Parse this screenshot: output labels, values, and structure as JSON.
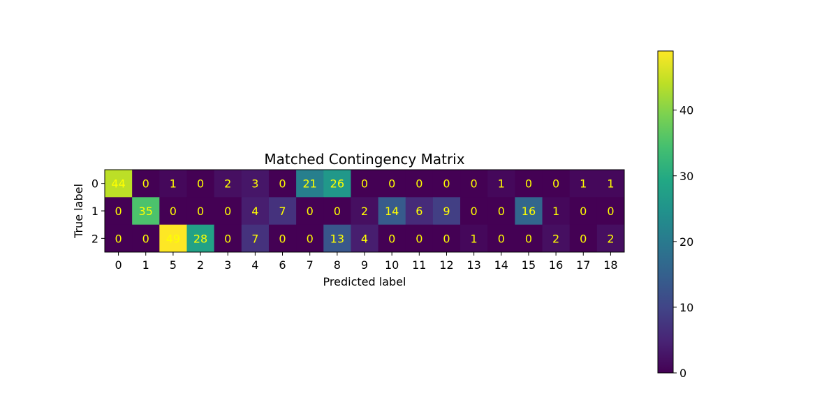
{
  "chart_data": {
    "type": "heatmap",
    "title": "Matched Contingency Matrix",
    "xlabel": "Predicted label",
    "ylabel": "True label",
    "x_categories": [
      "0",
      "1",
      "5",
      "2",
      "3",
      "4",
      "6",
      "7",
      "8",
      "9",
      "10",
      "11",
      "12",
      "13",
      "14",
      "15",
      "16",
      "17",
      "18"
    ],
    "y_categories": [
      "0",
      "1",
      "2"
    ],
    "values": [
      [
        44,
        0,
        1,
        0,
        2,
        3,
        0,
        21,
        26,
        0,
        0,
        0,
        0,
        0,
        1,
        0,
        0,
        1,
        1
      ],
      [
        0,
        35,
        0,
        0,
        0,
        4,
        7,
        0,
        0,
        2,
        14,
        6,
        9,
        0,
        0,
        16,
        1,
        0,
        0
      ],
      [
        0,
        0,
        49,
        28,
        0,
        7,
        0,
        0,
        13,
        4,
        0,
        0,
        0,
        1,
        0,
        0,
        2,
        0,
        2
      ]
    ],
    "colormap": "viridis",
    "colorbar": {
      "min": 0,
      "max": 49,
      "ticks": [
        0,
        10,
        20,
        30,
        40
      ],
      "tick_labels": [
        "0",
        "10",
        "20",
        "30",
        "40"
      ]
    },
    "cell_text_colors": {
      "on_dark": "#ffff00",
      "on_light": "#440154"
    },
    "grid": false
  }
}
